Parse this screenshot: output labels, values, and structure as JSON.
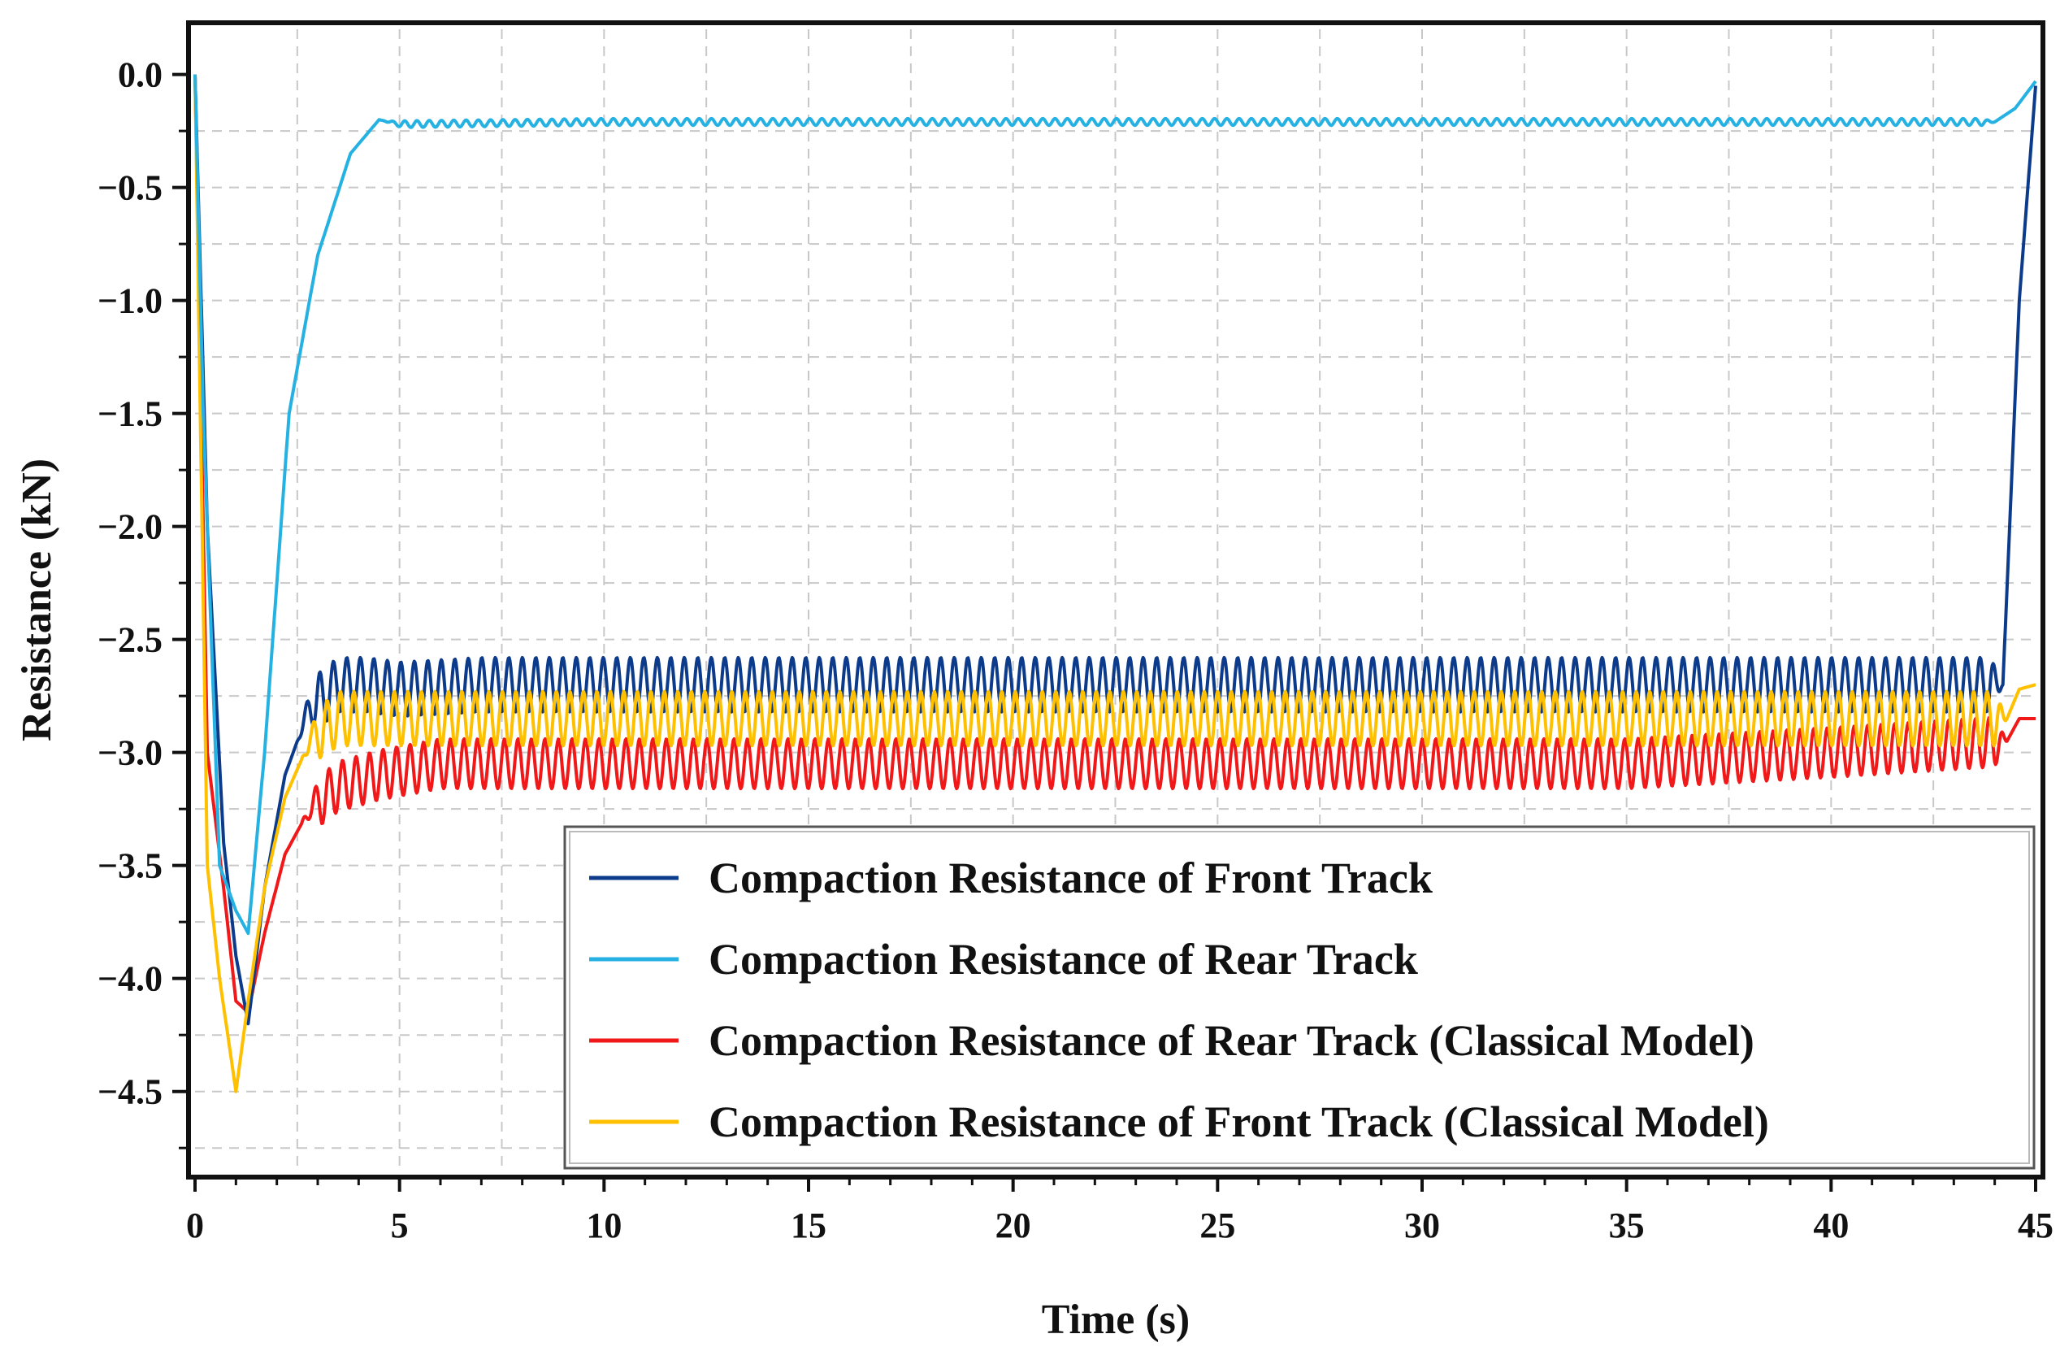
{
  "chart_data": {
    "type": "line",
    "xlabel": "Time (s)",
    "ylabel": "Resistance (kN)",
    "xlim": [
      0,
      45
    ],
    "ylim": [
      -4.85,
      0.2
    ],
    "xticks": [
      0,
      5,
      10,
      15,
      20,
      25,
      30,
      35,
      40,
      45
    ],
    "xtick_labels": [
      "0",
      "5",
      "10",
      "15",
      "20",
      "25",
      "30",
      "35",
      "40",
      "45"
    ],
    "yticks": [
      0.0,
      -0.5,
      -1.0,
      -1.5,
      -2.0,
      -2.5,
      -3.0,
      -3.5,
      -4.0,
      -4.5
    ],
    "ytick_labels": [
      "0.0",
      "−0.5",
      "−1.0",
      "−1.5",
      "−2.0",
      "−2.5",
      "−3.0",
      "−3.5",
      "−4.0",
      "−4.5"
    ],
    "grid": true,
    "legend_position": "bottom-right",
    "series": [
      {
        "name": "Compaction Resistance of Front Track",
        "color": "#0d3b8c",
        "x": [
          0,
          0.3,
          0.7,
          1.0,
          1.3,
          1.7,
          2.2,
          2.8,
          3.5,
          4.2,
          5,
          7,
          10,
          15,
          20,
          25,
          30,
          35,
          40,
          44.2,
          44.6,
          45.0
        ],
        "y": [
          0,
          -2.0,
          -3.4,
          -3.9,
          -4.2,
          -3.6,
          -3.1,
          -2.8,
          -2.7,
          -2.7,
          -2.72,
          -2.7,
          -2.7,
          -2.7,
          -2.7,
          -2.7,
          -2.7,
          -2.7,
          -2.7,
          -2.7,
          -1.0,
          -0.05
        ],
        "oscillation": {
          "start": 2.5,
          "end": 44.2,
          "period": 0.33,
          "amplitude": 0.12
        }
      },
      {
        "name": "Compaction Resistance of Rear Track",
        "color": "#25b2e2",
        "x": [
          0,
          0.2,
          0.6,
          1.0,
          1.3,
          1.7,
          2.3,
          3.0,
          3.8,
          4.5,
          5,
          10,
          20,
          30,
          40,
          44.0,
          44.5,
          45.0
        ],
        "y": [
          0,
          -1.5,
          -3.5,
          -3.7,
          -3.8,
          -3.0,
          -1.5,
          -0.8,
          -0.35,
          -0.2,
          -0.22,
          -0.21,
          -0.21,
          -0.21,
          -0.21,
          -0.21,
          -0.15,
          -0.03
        ],
        "oscillation": {
          "start": 4.6,
          "end": 44.0,
          "period": 0.3,
          "amplitude": 0.015
        }
      },
      {
        "name": "Compaction Resistance of Rear Track (Classical Model)",
        "color": "#f01818",
        "x": [
          0,
          0.3,
          0.7,
          1.0,
          1.3,
          1.7,
          2.2,
          2.8,
          3.5,
          4.5,
          6,
          8,
          10,
          15,
          20,
          25,
          30,
          35,
          40,
          44.3,
          44.6,
          45.0
        ],
        "y": [
          0,
          -3.0,
          -3.6,
          -4.1,
          -4.15,
          -3.8,
          -3.45,
          -3.25,
          -3.15,
          -3.1,
          -3.05,
          -3.05,
          -3.05,
          -3.05,
          -3.05,
          -3.05,
          -3.05,
          -3.05,
          -3.0,
          -2.95,
          -2.85,
          -2.85
        ],
        "oscillation": {
          "start": 2.6,
          "end": 44.3,
          "period": 0.33,
          "amplitude": 0.11
        }
      },
      {
        "name": "Compaction Resistance of Front Track (Classical Model)",
        "color": "#ffc000",
        "x": [
          0,
          0.3,
          0.6,
          1.0,
          1.3,
          1.7,
          2.2,
          2.8,
          3.5,
          4.5,
          6,
          10,
          15,
          20,
          25,
          30,
          35,
          40,
          44.3,
          44.6,
          45.0
        ],
        "y": [
          0,
          -3.5,
          -4.0,
          -4.5,
          -4.1,
          -3.6,
          -3.2,
          -2.95,
          -2.85,
          -2.85,
          -2.85,
          -2.85,
          -2.85,
          -2.85,
          -2.85,
          -2.85,
          -2.85,
          -2.85,
          -2.85,
          -2.72,
          -2.7
        ],
        "oscillation": {
          "start": 2.6,
          "end": 44.3,
          "period": 0.33,
          "amplitude": 0.12
        }
      }
    ]
  }
}
